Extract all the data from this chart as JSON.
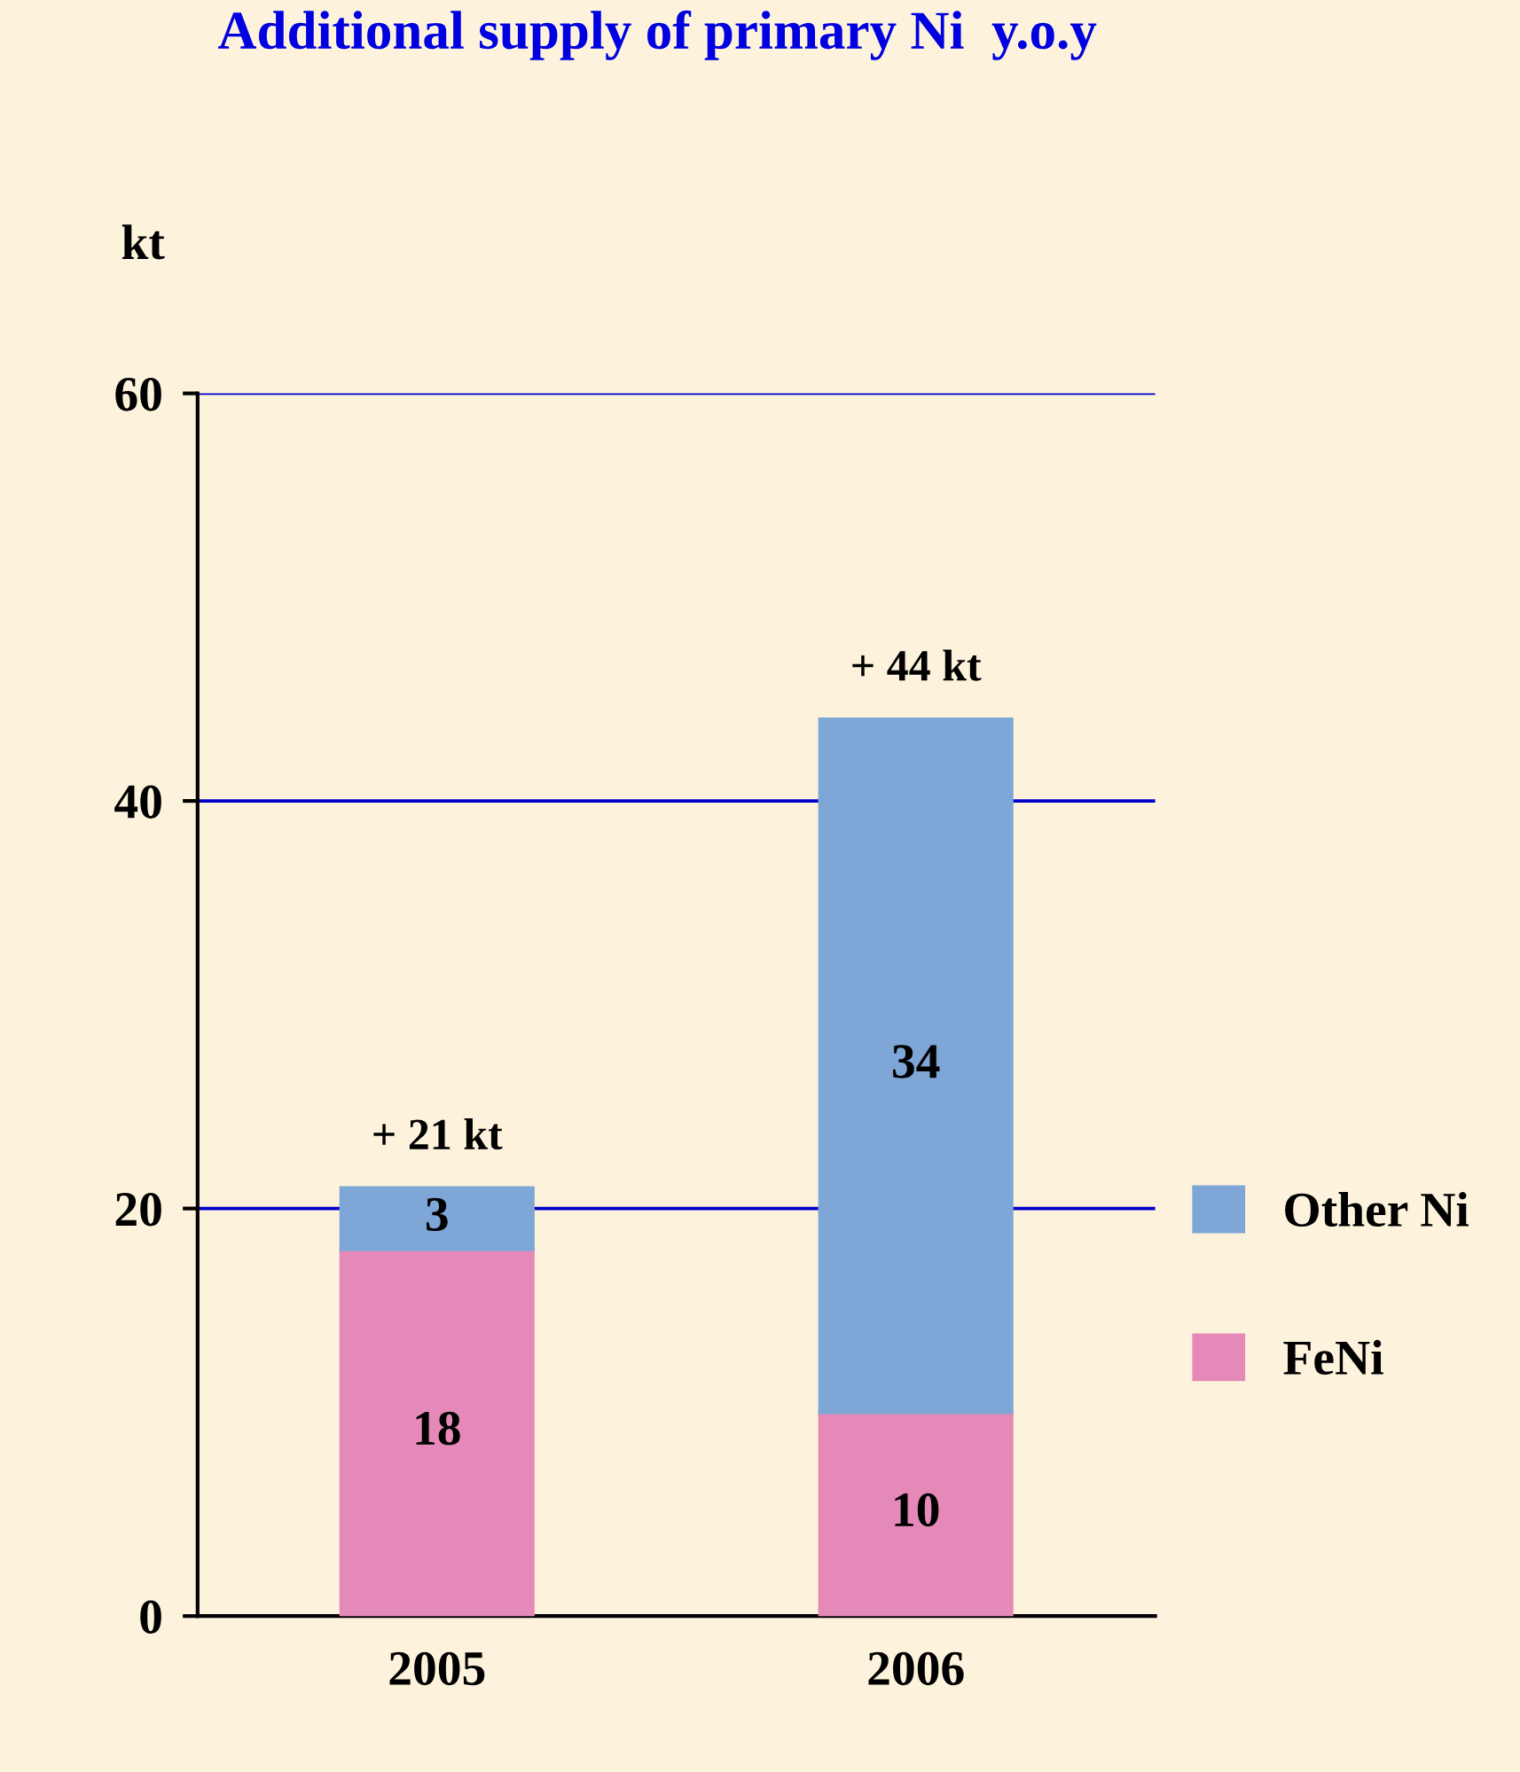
{
  "chart_data": {
    "type": "bar",
    "title": "Additional supply of primary Ni  y.o.y",
    "ylabel": "kt",
    "categories": [
      "2005",
      "2006"
    ],
    "series": [
      {
        "name": "FeNi",
        "color": "#e58ab8",
        "values": [
          18,
          10
        ]
      },
      {
        "name": "Other Ni",
        "color": "#7ea6d6",
        "values": [
          3,
          34
        ]
      }
    ],
    "stacked": true,
    "data_labels": true,
    "totals": [
      "+ 21 kt",
      "+ 44 kt"
    ],
    "ylim": [
      0,
      60
    ],
    "yticks": [
      0,
      20,
      40,
      60
    ],
    "grid": "y",
    "legend": "right"
  }
}
